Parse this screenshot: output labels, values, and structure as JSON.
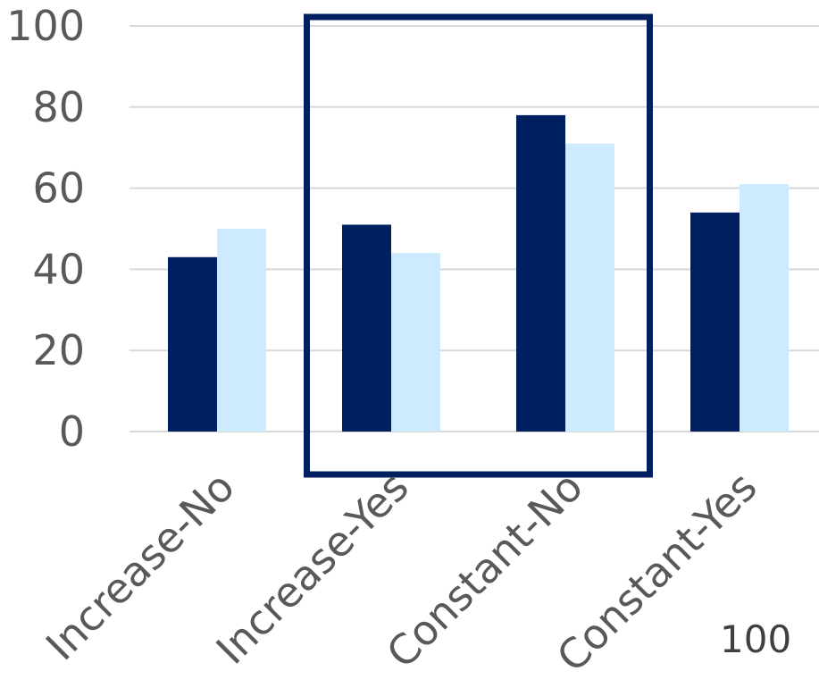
{
  "chart_data": {
    "type": "bar",
    "title": "",
    "xlabel": "",
    "ylabel": "",
    "categories": [
      "Increase-No",
      "Increase-Yes",
      "Constant-No",
      "Constant-Yes"
    ],
    "series": [
      {
        "values": [
          43,
          51,
          78,
          54
        ],
        "color": "#002060"
      },
      {
        "values": [
          50,
          44,
          71,
          61
        ],
        "color": "#cdeafe"
      }
    ],
    "ylim": [
      0,
      100
    ],
    "yticks": [
      0,
      20,
      40,
      60,
      80,
      100
    ],
    "grid": true,
    "gridColor": "#d9d9d9",
    "highlight": {
      "categories": [
        "Increase-Yes",
        "Constant-No"
      ],
      "color": "#002060"
    },
    "overlap_text": "100"
  }
}
